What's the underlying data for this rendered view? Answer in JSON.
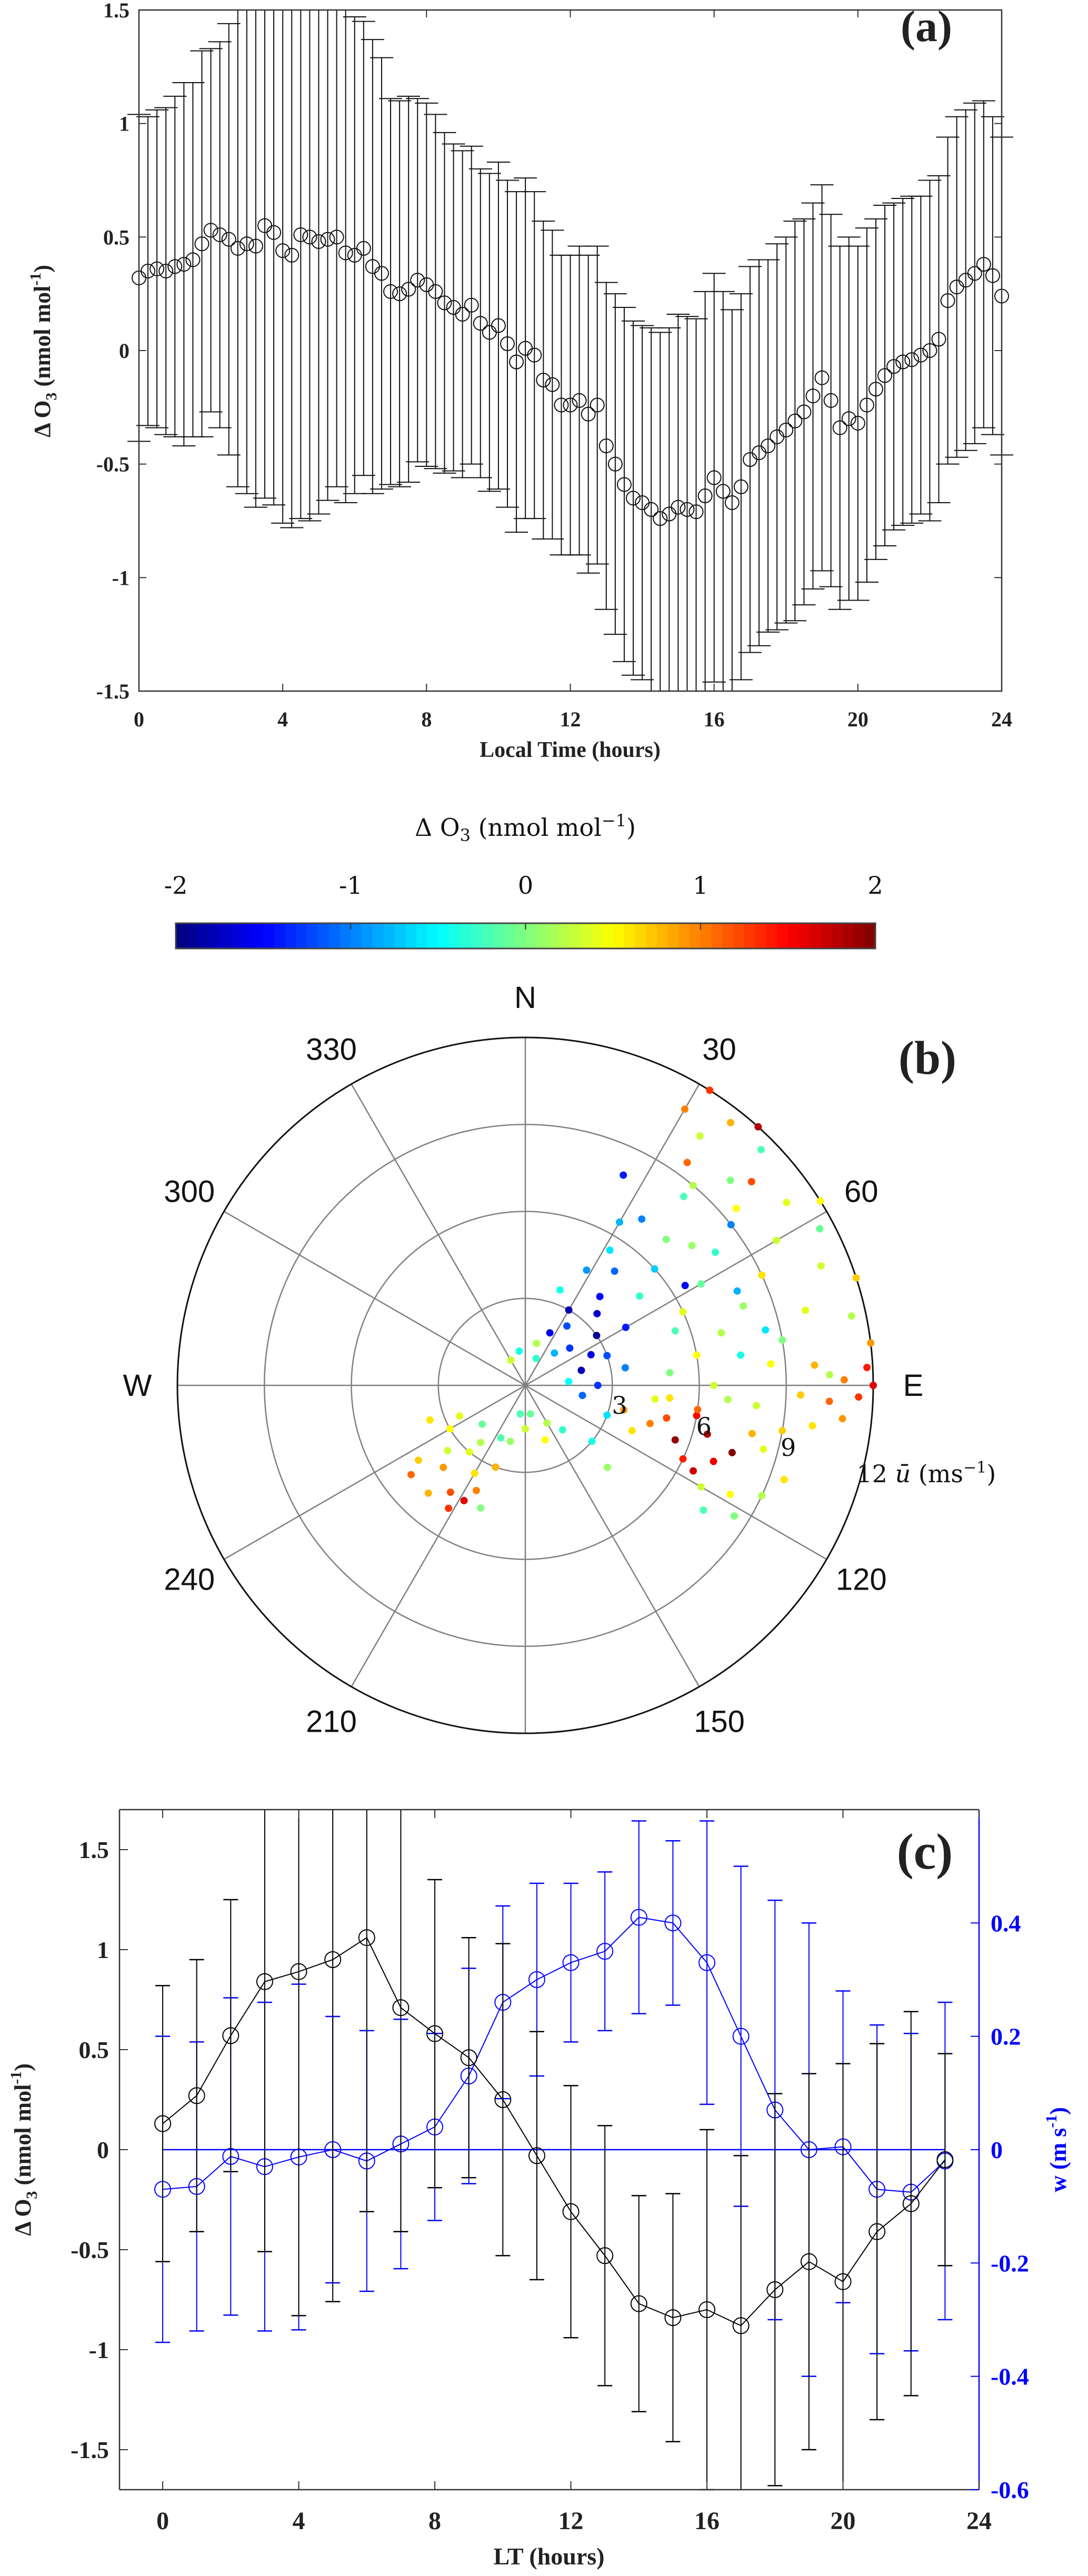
{
  "chart_data": [
    {
      "panel": "(a)",
      "type": "line",
      "title": "",
      "xlabel": "Local Time (hours)",
      "ylabel": {
        "base": "Δ O",
        "sub": "3",
        "unit": " (nmol mol",
        "sup": "-1",
        "close": ")"
      },
      "xlim": [
        0,
        24
      ],
      "ylim": [
        -1.5,
        1.5
      ],
      "xticks": [
        0,
        4,
        8,
        12,
        16,
        20,
        24
      ],
      "yticks": [
        -1.5,
        -1,
        -0.5,
        0,
        0.5,
        1,
        1.5
      ],
      "ytick_labels": [
        "-1.5",
        "-1",
        "-0.5",
        "0",
        "0.5",
        "1",
        "1.5"
      ],
      "marker": "open-circle",
      "color": "#000000",
      "x_step_hours": 0.25,
      "mean": [
        0.32,
        0.35,
        0.36,
        0.35,
        0.37,
        0.38,
        0.4,
        0.47,
        0.53,
        0.51,
        0.49,
        0.45,
        0.47,
        0.46,
        0.55,
        0.52,
        0.44,
        0.42,
        0.51,
        0.5,
        0.48,
        0.49,
        0.5,
        0.43,
        0.42,
        0.45,
        0.37,
        0.34,
        0.26,
        0.25,
        0.27,
        0.31,
        0.29,
        0.26,
        0.21,
        0.19,
        0.16,
        0.2,
        0.12,
        0.08,
        0.11,
        0.03,
        -0.05,
        0.01,
        -0.02,
        -0.13,
        -0.15,
        -0.24,
        -0.24,
        -0.22,
        -0.28,
        -0.24,
        -0.42,
        -0.5,
        -0.59,
        -0.65,
        -0.67,
        -0.7,
        -0.74,
        -0.72,
        -0.69,
        -0.7,
        -0.71,
        -0.64,
        -0.56,
        -0.62,
        -0.67,
        -0.6,
        -0.48,
        -0.45,
        -0.42,
        -0.38,
        -0.35,
        -0.31,
        -0.27,
        -0.2,
        -0.12,
        -0.22,
        -0.34,
        -0.3,
        -0.32,
        -0.24,
        -0.17,
        -0.11,
        -0.07,
        -0.05,
        -0.04,
        -0.02,
        0.0,
        0.05,
        0.22,
        0.28,
        0.31,
        0.34,
        0.38,
        0.33,
        0.24
      ],
      "error": [
        0.72,
        0.68,
        0.7,
        0.72,
        0.75,
        0.8,
        0.78,
        0.85,
        0.8,
        0.85,
        0.95,
        1.05,
        1.1,
        1.15,
        1.2,
        1.2,
        1.2,
        1.2,
        1.25,
        1.25,
        1.2,
        1.15,
        1.1,
        1.1,
        1.05,
        1.0,
        1.0,
        0.95,
        0.85,
        0.85,
        0.85,
        0.8,
        0.8,
        0.78,
        0.75,
        0.72,
        0.72,
        0.7,
        0.68,
        0.7,
        0.72,
        0.72,
        0.75,
        0.75,
        0.72,
        0.7,
        0.68,
        0.66,
        0.66,
        0.68,
        0.7,
        0.7,
        0.72,
        0.75,
        0.78,
        0.78,
        0.78,
        0.8,
        0.82,
        0.82,
        0.85,
        0.85,
        0.85,
        0.9,
        0.9,
        0.88,
        0.85,
        0.85,
        0.85,
        0.85,
        0.82,
        0.85,
        0.85,
        0.88,
        0.85,
        0.85,
        0.85,
        0.82,
        0.8,
        0.8,
        0.78,
        0.78,
        0.75,
        0.75,
        0.72,
        0.72,
        0.72,
        0.7,
        0.75,
        0.72,
        0.72,
        0.75,
        0.75,
        0.75,
        0.72,
        0.7,
        0.7
      ]
    },
    {
      "panel": "(b)",
      "type": "scatter",
      "subtype": "polar",
      "colorbar": {
        "title": {
          "base": "Δ O",
          "sub": "3",
          "unit": " (nmol mol",
          "sup": "−1",
          "close": ")"
        },
        "ticks": [
          -2,
          -1,
          0,
          1,
          2
        ],
        "tick_labels": [
          "-2",
          "-1",
          "0",
          "1",
          "2"
        ],
        "range": [
          -2,
          2
        ],
        "colormap": "jet",
        "placement": "top"
      },
      "direction_labels": [
        {
          "angle": 0,
          "label": "N"
        },
        {
          "angle": 30,
          "label": "30"
        },
        {
          "angle": 60,
          "label": "60"
        },
        {
          "angle": 90,
          "label": "E"
        },
        {
          "angle": 120,
          "label": "120"
        },
        {
          "angle": 150,
          "label": "150"
        },
        {
          "angle": 210,
          "label": "210"
        },
        {
          "angle": 240,
          "label": "240"
        },
        {
          "angle": 270,
          "label": "W"
        },
        {
          "angle": 300,
          "label": "300"
        },
        {
          "angle": 330,
          "label": "330"
        }
      ],
      "radial_ticks": [
        3,
        6,
        9,
        12
      ],
      "radial_tick_labels": [
        "3",
        "6",
        "9",
        "12"
      ],
      "rlim": [
        0,
        12
      ],
      "radial_label": {
        "sym": "ū",
        "unit": " (ms",
        "sup": "−1",
        "close": ")"
      },
      "point_fields": [
        "wind_direction_deg",
        "wind_speed_ms",
        "delta_O3"
      ],
      "points": [
        [
          25,
          2,
          -1.6
        ],
        [
          30,
          3,
          -1.8
        ],
        [
          35,
          2.5,
          -1.2
        ],
        [
          40,
          4,
          -1.5
        ],
        [
          28,
          4.5,
          -0.9
        ],
        [
          45,
          3.5,
          -1.7
        ],
        [
          50,
          2,
          -1.3
        ],
        [
          38,
          5,
          -1.1
        ],
        [
          32,
          5.5,
          -0.6
        ],
        [
          55,
          3,
          -1.9
        ],
        [
          60,
          4,
          -1.4
        ],
        [
          42,
          1.5,
          -0.8
        ],
        [
          20,
          3.5,
          -0.4
        ],
        [
          65,
          2.5,
          -1.6
        ],
        [
          70,
          3,
          -1.2
        ],
        [
          48,
          6,
          -0.7
        ],
        [
          35,
          7,
          -1.0
        ],
        [
          52,
          5,
          -0.3
        ],
        [
          58,
          6.5,
          -1.5
        ],
        [
          75,
          2,
          -1.8
        ],
        [
          80,
          3.5,
          -1.0
        ],
        [
          85,
          1.5,
          -0.5
        ],
        [
          90,
          2.5,
          -1.3
        ],
        [
          100,
          2,
          -1.1
        ],
        [
          110,
          3,
          -0.6
        ],
        [
          30,
          6.5,
          -0.8
        ],
        [
          25,
          8,
          -1.4
        ],
        [
          40,
          8.5,
          -0.2
        ],
        [
          22,
          1,
          -0.3
        ],
        [
          15,
          1.5,
          0.2
        ],
        [
          350,
          1.2,
          -0.4
        ],
        [
          330,
          1,
          0.3
        ],
        [
          40,
          9,
          0.2
        ],
        [
          45,
          10,
          0.0
        ],
        [
          50,
          9.5,
          0.5
        ],
        [
          55,
          8,
          -0.3
        ],
        [
          60,
          10,
          0.3
        ],
        [
          65,
          9,
          0.6
        ],
        [
          70,
          8,
          0.1
        ],
        [
          75,
          10,
          0.4
        ],
        [
          80,
          9,
          0.0
        ],
        [
          85,
          8.5,
          0.5
        ],
        [
          88,
          10.5,
          0.2
        ],
        [
          92,
          9.5,
          0.7
        ],
        [
          95,
          8,
          0.3
        ],
        [
          98,
          10,
          0.6
        ],
        [
          60,
          7,
          -0.1
        ],
        [
          65,
          6,
          0.4
        ],
        [
          70,
          5.5,
          -0.2
        ],
        [
          75,
          7,
          0.2
        ],
        [
          80,
          6,
          0.5
        ],
        [
          85,
          5,
          0.0
        ],
        [
          90,
          6.5,
          0.3
        ],
        [
          95,
          5,
          0.6
        ],
        [
          50,
          7.5,
          0.1
        ],
        [
          55,
          11,
          0.4
        ],
        [
          45,
          11.5,
          -0.2
        ],
        [
          35,
          10.5,
          0.3
        ],
        [
          38,
          11.5,
          0.8
        ],
        [
          30,
          11,
          1.0
        ],
        [
          32,
          12,
          1.3
        ],
        [
          42,
          12,
          1.8
        ],
        [
          36,
          9.5,
          1.1
        ],
        [
          48,
          10.5,
          1.2
        ],
        [
          58,
          12,
          0.5
        ],
        [
          62,
          11.5,
          -0.1
        ],
        [
          68,
          11,
          0.3
        ],
        [
          72,
          12,
          0.7
        ],
        [
          78,
          11.5,
          0.2
        ],
        [
          83,
          12,
          0.9
        ],
        [
          87,
          11.8,
          1.4
        ],
        [
          90,
          12,
          1.6
        ],
        [
          92,
          11.5,
          1.3
        ],
        [
          89,
          11,
          1.0
        ],
        [
          86,
          10,
          0.8
        ],
        [
          93,
          10.5,
          1.1
        ],
        [
          96,
          11,
          0.9
        ],
        [
          100,
          9,
          0.7
        ],
        [
          105,
          8.5,
          0.4
        ],
        [
          94,
          7,
          0.2
        ],
        [
          82,
          7.5,
          -0.4
        ],
        [
          77,
          8.5,
          -0.6
        ],
        [
          66,
          8,
          -0.8
        ],
        [
          52,
          9,
          -1.0
        ],
        [
          44,
          7,
          0.0
        ],
        [
          100,
          6,
          1.5
        ],
        [
          105,
          6.5,
          1.8
        ],
        [
          110,
          5.5,
          1.9
        ],
        [
          112,
          7,
          1.6
        ],
        [
          108,
          7.5,
          2.0
        ],
        [
          115,
          6,
          1.4
        ],
        [
          103,
          5,
          1.2
        ],
        [
          118,
          8,
          0.5
        ],
        [
          120,
          7,
          0.3
        ],
        [
          122,
          8.5,
          0.0
        ],
        [
          117,
          6.5,
          1.7
        ],
        [
          107,
          4.5,
          1.0
        ],
        [
          113,
          4,
          0.6
        ],
        [
          125,
          7.5,
          -0.2
        ],
        [
          102,
          8,
          0.8
        ],
        [
          98,
          6,
          1.1
        ],
        [
          96,
          4.5,
          0.4
        ],
        [
          104,
          3.5,
          0.9
        ],
        [
          115,
          9,
          0.2
        ],
        [
          110,
          9.5,
          0.6
        ],
        [
          200,
          3,
          0.8
        ],
        [
          205,
          4,
          1.0
        ],
        [
          210,
          3.5,
          0.6
        ],
        [
          215,
          4.5,
          1.2
        ],
        [
          220,
          3,
          0.4
        ],
        [
          225,
          4,
          0.9
        ],
        [
          230,
          3.5,
          0.3
        ],
        [
          235,
          4.5,
          0.7
        ],
        [
          240,
          3,
          0.5
        ],
        [
          212,
          5,
          1.3
        ],
        [
          218,
          2.5,
          0.2
        ],
        [
          228,
          2,
          -0.1
        ],
        [
          245,
          2.5,
          0.4
        ],
        [
          195,
          2,
          0.1
        ],
        [
          205,
          2,
          -0.2
        ],
        [
          222,
          5,
          0.8
        ],
        [
          232,
          5,
          1.1
        ],
        [
          208,
          4.5,
          1.6
        ],
        [
          250,
          3.5,
          0.6
        ],
        [
          200,
          4.5,
          0.0
        ],
        [
          140,
          2,
          -0.3
        ],
        [
          150,
          1.5,
          0.2
        ],
        [
          160,
          2,
          0.5
        ],
        [
          170,
          1,
          -0.1
        ],
        [
          130,
          3,
          -0.4
        ],
        [
          135,
          4,
          0.1
        ],
        [
          180,
          1.5,
          0.3
        ],
        [
          190,
          1,
          -0.2
        ]
      ]
    },
    {
      "panel": "(c)",
      "type": "line",
      "xlabel": "LT (hours)",
      "ylabel_left": {
        "base": "Δ O",
        "sub": "3",
        "unit": " (nmol mol",
        "sup": "-1",
        "close": ")"
      },
      "ylabel_right": {
        "base": "w (m s",
        "sup": "-1",
        "close": ")"
      },
      "xlim": [
        -1.27,
        24
      ],
      "ylim_left": [
        -1.7,
        1.7
      ],
      "ylim_right": [
        -0.6,
        0.6
      ],
      "xticks": [
        0,
        4,
        8,
        12,
        16,
        20,
        24
      ],
      "yticks_left": [
        -1.5,
        -1,
        -0.5,
        0,
        0.5,
        1,
        1.5
      ],
      "ytick_labels_left": [
        "-1.5",
        "-1",
        "-0.5",
        "0",
        "0.5",
        "1",
        "1.5"
      ],
      "yticks_right": [
        -0.6,
        -0.4,
        -0.2,
        0,
        0.2,
        0.4
      ],
      "ytick_labels_right": [
        "-0.6",
        "-0.4",
        "-0.2",
        "0",
        "0.2",
        "0.4"
      ],
      "x": [
        0,
        1,
        2,
        3,
        4,
        5,
        6,
        7,
        8,
        9,
        10,
        11,
        12,
        13,
        14,
        15,
        16,
        17,
        18,
        19,
        20,
        21,
        22,
        23
      ],
      "series": [
        {
          "name": "ΔO3",
          "axis": "left",
          "color": "#000000",
          "values": [
            0.13,
            0.27,
            0.57,
            0.84,
            0.89,
            0.95,
            1.06,
            0.71,
            0.58,
            0.46,
            0.25,
            -0.03,
            -0.31,
            -0.53,
            -0.77,
            -0.84,
            -0.8,
            -0.88,
            -0.7,
            -0.56,
            -0.66,
            -0.41,
            -0.27,
            -0.05
          ],
          "error": [
            0.69,
            0.68,
            0.68,
            1.35,
            1.72,
            1.71,
            1.37,
            1.12,
            0.77,
            0.6,
            0.78,
            0.62,
            0.63,
            0.65,
            0.54,
            0.62,
            0.9,
            0.85,
            0.98,
            0.94,
            1.09,
            0.94,
            0.96,
            0.53
          ]
        },
        {
          "name": "w",
          "axis": "right",
          "color": "#0000ff",
          "values": [
            -0.07,
            -0.065,
            -0.012,
            -0.03,
            -0.013,
            0.0,
            -0.02,
            0.01,
            0.04,
            0.13,
            0.26,
            0.3,
            0.33,
            0.35,
            0.41,
            0.4,
            0.33,
            0.2,
            0.07,
            0.0,
            0.005,
            -0.07,
            -0.075,
            -0.02
          ],
          "error": [
            0.27,
            0.255,
            0.28,
            0.29,
            0.305,
            0.235,
            0.23,
            0.22,
            0.165,
            0.19,
            0.17,
            0.17,
            0.14,
            0.14,
            0.17,
            0.145,
            0.25,
            0.3,
            0.37,
            0.4,
            0.275,
            0.29,
            0.28,
            0.28
          ]
        }
      ],
      "reference_line": {
        "axis": "right",
        "value": 0,
        "color": "#0000ff"
      }
    }
  ],
  "panel_labels": {
    "a": "(a)",
    "b": "(b)",
    "c": "(c)"
  },
  "colors": {
    "blue_axis": "#0000ff",
    "black": "#000000",
    "grid": "#808080"
  }
}
